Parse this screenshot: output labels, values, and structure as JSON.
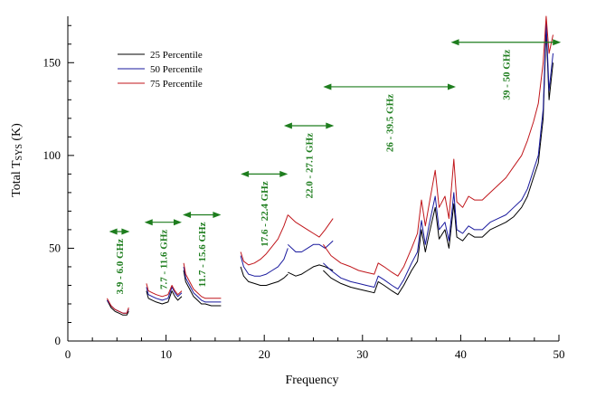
{
  "chart_data": {
    "type": "line",
    "title": "",
    "xlabel": "Frequency",
    "ylabel_prefix": "Total T",
    "ylabel_subscript": "SYS",
    "ylabel_suffix": " (K)",
    "xlim": [
      0,
      50
    ],
    "ylim": [
      0,
      175
    ],
    "x_major_ticks": [
      0,
      10,
      20,
      30,
      40,
      50
    ],
    "x_minor_step": 2.5,
    "y_major_ticks": [
      0,
      50,
      100,
      150
    ],
    "y_minor_step": 10,
    "grid": false,
    "legend_position": "top-left",
    "series": [
      {
        "name": "25 Percentile",
        "color": "#000000",
        "segments": [
          [
            [
              4.0,
              22
            ],
            [
              4.4,
              18
            ],
            [
              4.8,
              16
            ],
            [
              5.2,
              15
            ],
            [
              5.6,
              14
            ],
            [
              6.0,
              14
            ],
            [
              6.2,
              16
            ]
          ],
          [
            [
              8.0,
              27
            ],
            [
              8.2,
              23
            ],
            [
              8.6,
              22
            ],
            [
              9.0,
              21
            ],
            [
              9.6,
              20
            ],
            [
              10.2,
              21
            ],
            [
              10.6,
              27
            ],
            [
              10.9,
              24
            ],
            [
              11.2,
              22
            ],
            [
              11.6,
              24
            ]
          ],
          [
            [
              11.8,
              38
            ],
            [
              12.0,
              32
            ],
            [
              12.4,
              28
            ],
            [
              12.8,
              24
            ],
            [
              13.2,
              22
            ],
            [
              13.6,
              20
            ],
            [
              14.0,
              20
            ],
            [
              14.6,
              19
            ],
            [
              15.0,
              19
            ],
            [
              15.6,
              19
            ]
          ],
          [
            [
              17.6,
              40
            ],
            [
              17.9,
              35
            ],
            [
              18.4,
              32
            ],
            [
              19.0,
              31
            ],
            [
              19.6,
              30
            ],
            [
              20.2,
              30
            ],
            [
              20.8,
              31
            ],
            [
              21.4,
              32
            ],
            [
              22.0,
              34
            ],
            [
              22.4,
              36
            ]
          ],
          [
            [
              22.4,
              37
            ],
            [
              22.8,
              36
            ],
            [
              23.2,
              35
            ],
            [
              23.8,
              36
            ],
            [
              24.4,
              38
            ],
            [
              25.0,
              40
            ],
            [
              25.6,
              41
            ],
            [
              26.2,
              40
            ],
            [
              27.0,
              38
            ]
          ],
          [
            [
              26.0,
              38
            ],
            [
              26.8,
              34
            ],
            [
              27.8,
              31
            ],
            [
              28.8,
              29
            ],
            [
              29.6,
              28
            ],
            [
              30.4,
              27
            ],
            [
              31.2,
              26
            ],
            [
              31.6,
              32
            ],
            [
              32.2,
              30
            ],
            [
              33.0,
              27
            ],
            [
              33.6,
              25
            ],
            [
              34.2,
              30
            ],
            [
              35.0,
              38
            ],
            [
              35.6,
              43
            ],
            [
              36.0,
              60
            ],
            [
              36.4,
              48
            ],
            [
              36.8,
              58
            ],
            [
              37.4,
              72
            ],
            [
              37.8,
              55
            ],
            [
              38.4,
              60
            ],
            [
              38.8,
              50
            ],
            [
              39.3,
              74
            ],
            [
              39.6,
              56
            ],
            [
              40.2,
              54
            ],
            [
              40.8,
              58
            ],
            [
              41.4,
              56
            ],
            [
              42.2,
              56
            ],
            [
              43.0,
              60
            ],
            [
              43.8,
              62
            ],
            [
              44.6,
              64
            ],
            [
              45.4,
              67
            ],
            [
              46.2,
              72
            ],
            [
              46.8,
              78
            ],
            [
              47.4,
              88
            ],
            [
              47.9,
              96
            ],
            [
              48.4,
              120
            ],
            [
              48.7,
              168
            ],
            [
              49.0,
              130
            ],
            [
              49.4,
              150
            ]
          ]
        ]
      },
      {
        "name": "50 Percentile",
        "color": "#1a1a9e",
        "segments": [
          [
            [
              4.0,
              22
            ],
            [
              4.4,
              19
            ],
            [
              4.8,
              17
            ],
            [
              5.2,
              16
            ],
            [
              5.6,
              15
            ],
            [
              6.0,
              15
            ],
            [
              6.2,
              17
            ]
          ],
          [
            [
              8.0,
              29
            ],
            [
              8.2,
              25
            ],
            [
              8.6,
              24
            ],
            [
              9.0,
              23
            ],
            [
              9.6,
              22
            ],
            [
              10.2,
              23
            ],
            [
              10.6,
              29
            ],
            [
              10.9,
              26
            ],
            [
              11.2,
              24
            ],
            [
              11.6,
              26
            ]
          ],
          [
            [
              11.8,
              40
            ],
            [
              12.0,
              34
            ],
            [
              12.4,
              30
            ],
            [
              12.8,
              26
            ],
            [
              13.2,
              24
            ],
            [
              13.6,
              22
            ],
            [
              14.0,
              21
            ],
            [
              14.6,
              21
            ],
            [
              15.0,
              21
            ],
            [
              15.6,
              21
            ]
          ],
          [
            [
              17.6,
              46
            ],
            [
              17.9,
              40
            ],
            [
              18.4,
              36
            ],
            [
              19.0,
              35
            ],
            [
              19.6,
              35
            ],
            [
              20.2,
              36
            ],
            [
              20.8,
              38
            ],
            [
              21.4,
              40
            ],
            [
              22.0,
              44
            ],
            [
              22.4,
              50
            ]
          ],
          [
            [
              22.4,
              52
            ],
            [
              22.8,
              50
            ],
            [
              23.2,
              48
            ],
            [
              23.8,
              48
            ],
            [
              24.4,
              50
            ],
            [
              25.0,
              52
            ],
            [
              25.6,
              52
            ],
            [
              26.2,
              50
            ],
            [
              27.0,
              54
            ]
          ],
          [
            [
              26.0,
              42
            ],
            [
              26.8,
              38
            ],
            [
              27.8,
              34
            ],
            [
              28.8,
              32
            ],
            [
              29.6,
              31
            ],
            [
              30.4,
              30
            ],
            [
              31.2,
              29
            ],
            [
              31.6,
              35
            ],
            [
              32.2,
              33
            ],
            [
              33.0,
              30
            ],
            [
              33.6,
              28
            ],
            [
              34.2,
              33
            ],
            [
              35.0,
              42
            ],
            [
              35.6,
              48
            ],
            [
              36.0,
              65
            ],
            [
              36.4,
              52
            ],
            [
              36.8,
              63
            ],
            [
              37.4,
              78
            ],
            [
              37.8,
              60
            ],
            [
              38.4,
              64
            ],
            [
              38.8,
              54
            ],
            [
              39.3,
              80
            ],
            [
              39.6,
              60
            ],
            [
              40.2,
              58
            ],
            [
              40.8,
              62
            ],
            [
              41.4,
              60
            ],
            [
              42.2,
              60
            ],
            [
              43.0,
              64
            ],
            [
              43.8,
              66
            ],
            [
              44.6,
              68
            ],
            [
              45.4,
              72
            ],
            [
              46.2,
              76
            ],
            [
              46.8,
              82
            ],
            [
              47.4,
              92
            ],
            [
              47.9,
              100
            ],
            [
              48.4,
              125
            ],
            [
              48.7,
              172
            ],
            [
              49.0,
              135
            ],
            [
              49.4,
              155
            ]
          ]
        ]
      },
      {
        "name": "75 Percentile",
        "color": "#c0161b",
        "segments": [
          [
            [
              4.0,
              23
            ],
            [
              4.4,
              19
            ],
            [
              4.8,
              17
            ],
            [
              5.2,
              16
            ],
            [
              5.6,
              15
            ],
            [
              6.0,
              15
            ],
            [
              6.2,
              18
            ]
          ],
          [
            [
              8.0,
              31
            ],
            [
              8.2,
              27
            ],
            [
              8.6,
              26
            ],
            [
              9.0,
              25
            ],
            [
              9.6,
              24
            ],
            [
              10.2,
              25
            ],
            [
              10.6,
              30
            ],
            [
              10.9,
              27
            ],
            [
              11.2,
              25
            ],
            [
              11.6,
              27
            ]
          ],
          [
            [
              11.8,
              42
            ],
            [
              12.0,
              36
            ],
            [
              12.4,
              32
            ],
            [
              12.8,
              28
            ],
            [
              13.2,
              26
            ],
            [
              13.6,
              24
            ],
            [
              14.0,
              23
            ],
            [
              14.6,
              23
            ],
            [
              15.0,
              23
            ],
            [
              15.6,
              23
            ]
          ],
          [
            [
              17.6,
              48
            ],
            [
              17.9,
              43
            ],
            [
              18.4,
              41
            ],
            [
              19.0,
              42
            ],
            [
              19.6,
              44
            ],
            [
              20.2,
              47
            ],
            [
              20.8,
              51
            ],
            [
              21.4,
              55
            ],
            [
              22.0,
              62
            ],
            [
              22.4,
              68
            ]
          ],
          [
            [
              22.4,
              68
            ],
            [
              22.8,
              66
            ],
            [
              23.2,
              64
            ],
            [
              23.8,
              62
            ],
            [
              24.4,
              60
            ],
            [
              25.0,
              58
            ],
            [
              25.6,
              56
            ],
            [
              26.2,
              60
            ],
            [
              27.0,
              66
            ]
          ],
          [
            [
              26.0,
              52
            ],
            [
              26.8,
              46
            ],
            [
              27.8,
              42
            ],
            [
              28.8,
              40
            ],
            [
              29.6,
              38
            ],
            [
              30.4,
              37
            ],
            [
              31.2,
              36
            ],
            [
              31.6,
              42
            ],
            [
              32.2,
              40
            ],
            [
              33.0,
              37
            ],
            [
              33.6,
              35
            ],
            [
              34.2,
              40
            ],
            [
              35.0,
              50
            ],
            [
              35.6,
              58
            ],
            [
              36.0,
              76
            ],
            [
              36.4,
              62
            ],
            [
              36.8,
              74
            ],
            [
              37.4,
              92
            ],
            [
              37.8,
              72
            ],
            [
              38.4,
              78
            ],
            [
              38.8,
              66
            ],
            [
              39.3,
              98
            ],
            [
              39.6,
              75
            ],
            [
              40.2,
              72
            ],
            [
              40.8,
              78
            ],
            [
              41.4,
              76
            ],
            [
              42.2,
              76
            ],
            [
              43.0,
              80
            ],
            [
              43.8,
              84
            ],
            [
              44.6,
              88
            ],
            [
              45.4,
              94
            ],
            [
              46.2,
              100
            ],
            [
              46.8,
              108
            ],
            [
              47.4,
              118
            ],
            [
              47.9,
              128
            ],
            [
              48.4,
              150
            ],
            [
              48.7,
              175
            ],
            [
              49.0,
              155
            ],
            [
              49.4,
              165
            ]
          ]
        ]
      }
    ],
    "bands": [
      {
        "label": "3.9 - 6.0 GHz",
        "x0": 4.2,
        "x1": 6.3,
        "y": 59
      },
      {
        "label": "7.7 - 11.6 GHz",
        "x0": 7.8,
        "x1": 11.6,
        "y": 64
      },
      {
        "label": "11.7 - 15.6 GHz",
        "x0": 11.7,
        "x1": 15.6,
        "y": 68
      },
      {
        "label": "17.6 - 22.4 GHz",
        "x0": 17.6,
        "x1": 22.4,
        "y": 90
      },
      {
        "label": "22.0 - 27.1 GHz",
        "x0": 22.0,
        "x1": 27.1,
        "y": 116
      },
      {
        "label": "26 - 39.5 GHz",
        "x0": 26.0,
        "x1": 39.5,
        "y": 137
      },
      {
        "label": "39 - 50 GHz",
        "x0": 39.0,
        "x1": 50.2,
        "y": 161
      }
    ]
  }
}
